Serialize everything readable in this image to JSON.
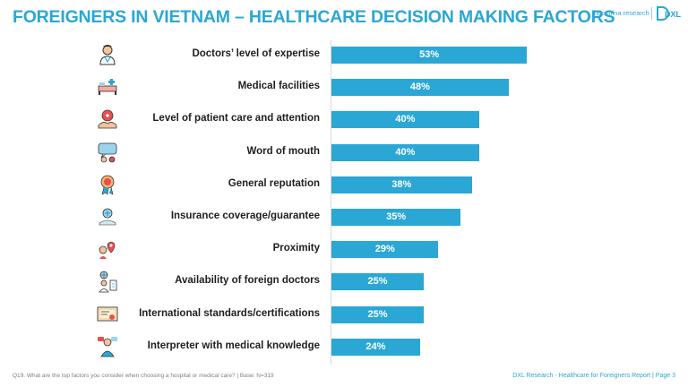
{
  "page": {
    "title": "FOREIGNERS IN VIETNAM – HEALTHCARE DECISION MAKING FACTORS",
    "logo_text": "Indochina research",
    "logo_mark": "DXL",
    "footer_left": "Q19. What are the top factors you consider when choosing a hospital or medical care? | Base: N=319",
    "footer_right": "DXL Research - Healthcare for Foreigners Report | Page 3"
  },
  "colors": {
    "title": "#2aa7d4",
    "bar": "#2aa7d4",
    "label": "#1f1f1f"
  },
  "chart_data": {
    "type": "bar",
    "orientation": "horizontal",
    "categories": [
      "Doctors’ level of expertise",
      "Medical facilities",
      "Level of patient care and attention",
      "Word of mouth",
      "General reputation",
      "Insurance coverage/guarantee",
      "Proximity",
      "Availability of foreign doctors",
      "International standards/certifications",
      "Interpreter with medical knowledge"
    ],
    "values": [
      53,
      48,
      40,
      40,
      38,
      35,
      29,
      25,
      25,
      24
    ],
    "value_labels": [
      "53%",
      "48%",
      "40%",
      "40%",
      "38%",
      "35%",
      "29%",
      "25%",
      "25%",
      "24%"
    ],
    "icons": [
      "doctor-icon",
      "hospital-bed-icon",
      "patient-care-icon",
      "word-of-mouth-icon",
      "reputation-badge-icon",
      "insurance-icon",
      "proximity-icon",
      "foreign-doctor-icon",
      "certificate-icon",
      "interpreter-icon"
    ],
    "xlim": [
      0,
      100
    ],
    "legend": "none",
    "grid": false
  }
}
